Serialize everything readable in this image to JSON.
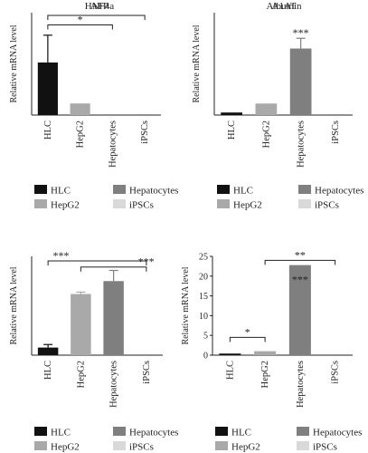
{
  "palette": {
    "HLC": "#111111",
    "HepG2": "#a9a9a9",
    "Hepatocytes": "#7f7f7f",
    "iPSCs": "#d9d9d9"
  },
  "legend": {
    "items": [
      {
        "label": "HLC",
        "color": "#111111"
      },
      {
        "label": "Hepatocytes",
        "color": "#7f7f7f"
      },
      {
        "label": "HepG2",
        "color": "#a9a9a9"
      },
      {
        "label": "iPSCs",
        "color": "#d9d9d9"
      }
    ]
  },
  "chart_data": [
    {
      "type": "bar",
      "title": "AFP",
      "ylabel": "Relative mRNA level",
      "categories": [
        "HLC",
        "HepG2",
        "Hepatocytes",
        "iPSCs"
      ],
      "values": [
        0.77,
        0.17,
        0,
        0
      ],
      "errors": [
        0.4,
        0,
        0,
        0
      ],
      "ylim": [
        0,
        1.5
      ],
      "yticks": [],
      "annotations": [
        {
          "from": 0,
          "to": 2,
          "level": 1.32,
          "label": "*"
        },
        {
          "from": 0,
          "to": 3,
          "level": 1.46,
          "label": ""
        }
      ]
    },
    {
      "type": "bar",
      "title": "A1AT",
      "ylabel": "Relative mRNA level",
      "categories": [
        "HLC",
        "HepG2",
        "Hepatocytes",
        "iPSCs"
      ],
      "values": [
        1.0,
        4.5,
        26,
        0
      ],
      "errors": [
        0,
        0,
        4,
        0
      ],
      "ylim": [
        0,
        40
      ],
      "yticks": [],
      "annotations": [
        {
          "label": "***",
          "over": 2,
          "level": 31.5
        }
      ]
    },
    {
      "type": "bar",
      "title": "HNF4a",
      "ylabel": "Relative mRNA level",
      "categories": [
        "HLC",
        "HepG2",
        "Hepatocytes",
        "iPSCs"
      ],
      "values": [
        0.02,
        0.161,
        0.195,
        0
      ],
      "errors": [
        0.008,
        0.005,
        0.028,
        0
      ],
      "ylim": [
        0,
        0.26
      ],
      "yticks": [],
      "annotations": [
        {
          "from": 0,
          "to": 3,
          "level": 0.248,
          "label": "***"
        },
        {
          "from": 1,
          "to": 3,
          "level": 0.232,
          "label": "***"
        }
      ]
    },
    {
      "type": "bar",
      "title": "Albumin",
      "ylabel": "Relative mRNA level",
      "categories": [
        "HLC",
        "HepG2",
        "Hepatocytes",
        "iPSCs"
      ],
      "values": [
        0.4,
        1.0,
        22.8,
        0
      ],
      "errors": [
        0,
        0,
        0,
        0
      ],
      "ylim": [
        0,
        25
      ],
      "yticks": [
        "0",
        "5",
        "10",
        "15",
        "20",
        "25"
      ],
      "annotations": [
        {
          "from": 0,
          "to": 1,
          "level": 4.5,
          "label": "*"
        },
        {
          "from": 1,
          "to": 3,
          "level": 24.0,
          "label": "**"
        },
        {
          "label": "***",
          "over": 2,
          "level": 20.5,
          "inside": true
        }
      ]
    }
  ]
}
